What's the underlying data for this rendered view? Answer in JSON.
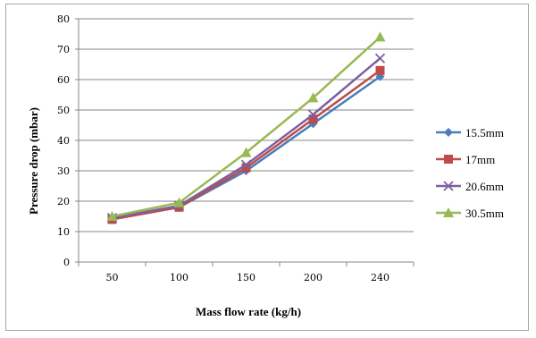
{
  "chart_data": {
    "type": "line",
    "title": "",
    "xlabel": "Mass flow rate (kg/h)",
    "ylabel": "Pressure drop (mbar)",
    "categories": [
      "50",
      "100",
      "150",
      "200",
      "240"
    ],
    "ylim": [
      0,
      80
    ],
    "yticks": [
      "0",
      "10",
      "20",
      "30",
      "40",
      "50",
      "60",
      "70",
      "80"
    ],
    "grid": true,
    "legend_position": "right",
    "series": [
      {
        "name": "15.5mm",
        "color": "#4a7ebb",
        "marker": "diamond",
        "values": [
          14.5,
          18,
          30,
          45.5,
          61
        ]
      },
      {
        "name": "17mm",
        "color": "#be4b48",
        "marker": "square",
        "values": [
          14,
          18,
          31,
          47,
          63
        ]
      },
      {
        "name": "20.6mm",
        "color": "#7d60a0",
        "marker": "x",
        "values": [
          14.5,
          18.5,
          32,
          48.5,
          67
        ]
      },
      {
        "name": "30.5mm",
        "color": "#98b954",
        "marker": "triangle",
        "values": [
          15,
          19.5,
          36,
          54,
          74
        ]
      }
    ]
  }
}
